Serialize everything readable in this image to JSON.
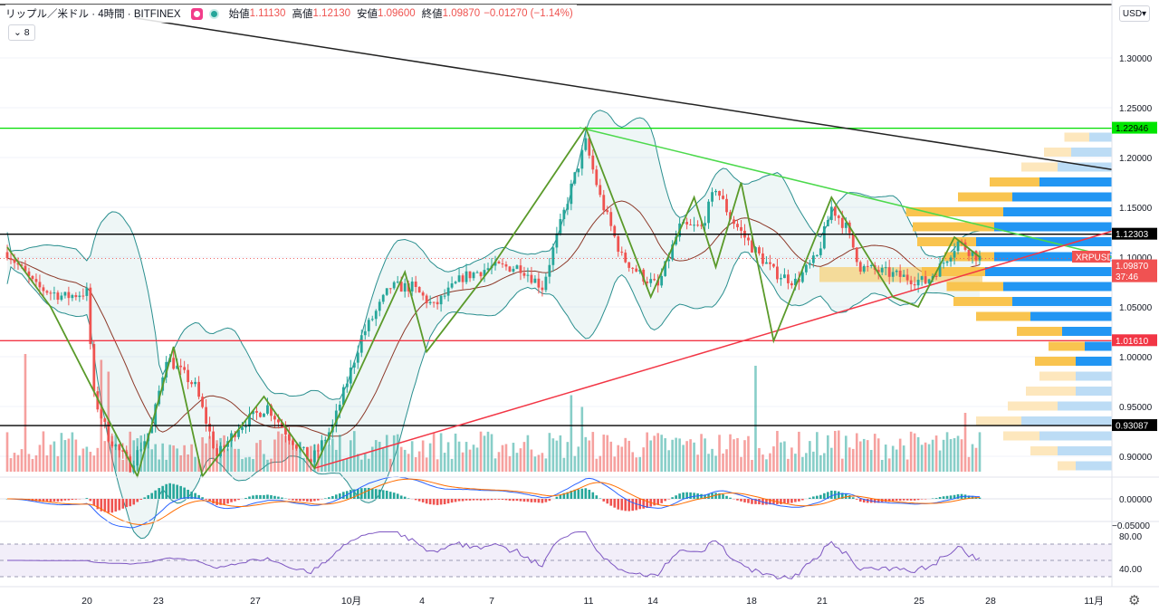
{
  "legend": {
    "symbol": "リップル／米ドル · 4時間 · BITFINEX",
    "open_label": "始値",
    "open": "1.11130",
    "high_label": "高値",
    "high": "1.12130",
    "low_label": "安値",
    "low": "1.09600",
    "close_label": "終値",
    "close": "1.09870",
    "change": "−0.01270 (−1.14%)",
    "indicator": "8"
  },
  "currency": "USD",
  "chart_data": {
    "type": "candlestick",
    "symbol": "XRPUSD",
    "timeframe": "4h",
    "x_ticks": [
      "20",
      "23",
      "27",
      "10月",
      "4",
      "7",
      "11",
      "14",
      "18",
      "21",
      "25",
      "28",
      "11月"
    ],
    "y_ticks": [
      "1.30000",
      "1.25000",
      "1.20000",
      "1.15000",
      "1.10000",
      "1.05000",
      "1.00000",
      "0.95000",
      "0.90000"
    ],
    "ylim": [
      0.875,
      1.35
    ],
    "price_tags": [
      {
        "label": "1.22946",
        "value": 1.22946,
        "color": "#00e600",
        "text_color": "#000000"
      },
      {
        "label": "1.12303",
        "value": 1.12303,
        "color": "#000000",
        "text_color": "#ffffff"
      },
      {
        "label": "XRPUSD",
        "value": 1.1,
        "color": "#f05252",
        "text_color": "#ffffff"
      },
      {
        "label": "1.09870",
        "value": 1.0913,
        "color": "#f05252",
        "text_color": "#ffffff"
      },
      {
        "label": "37:46",
        "value": 1.0803,
        "color": "#f05252",
        "text_color": "#ffffff"
      },
      {
        "label": "1.01610",
        "value": 1.0161,
        "color": "#f23645",
        "text_color": "#ffffff"
      },
      {
        "label": "0.93087",
        "value": 0.93087,
        "color": "#000000",
        "text_color": "#ffffff"
      }
    ],
    "horizontal_levels": [
      {
        "value": 1.22946,
        "color": "#00dd00"
      },
      {
        "value": 1.12303,
        "color": "#000000"
      },
      {
        "value": 1.0161,
        "color": "#f23645"
      },
      {
        "value": 0.93087,
        "color": "#000000"
      }
    ],
    "anchors": [
      {
        "t": 0,
        "p": 1.105
      },
      {
        "t": 8,
        "p": 1.07
      },
      {
        "t": 16,
        "p": 1.06
      },
      {
        "t": 22,
        "p": 1.065
      },
      {
        "t": 24,
        "p": 0.96
      },
      {
        "t": 28,
        "p": 0.92
      },
      {
        "t": 34,
        "p": 0.89
      },
      {
        "t": 40,
        "p": 0.93
      },
      {
        "t": 44,
        "p": 1.0
      },
      {
        "t": 52,
        "p": 0.97
      },
      {
        "t": 58,
        "p": 0.9
      },
      {
        "t": 64,
        "p": 0.93
      },
      {
        "t": 72,
        "p": 0.95
      },
      {
        "t": 78,
        "p": 0.92
      },
      {
        "t": 84,
        "p": 0.895
      },
      {
        "t": 90,
        "p": 0.93
      },
      {
        "t": 98,
        "p": 1.02
      },
      {
        "t": 106,
        "p": 1.07
      },
      {
        "t": 112,
        "p": 1.07
      },
      {
        "t": 118,
        "p": 1.05
      },
      {
        "t": 126,
        "p": 1.08
      },
      {
        "t": 134,
        "p": 1.09
      },
      {
        "t": 142,
        "p": 1.09
      },
      {
        "t": 148,
        "p": 1.07
      },
      {
        "t": 152,
        "p": 1.12
      },
      {
        "t": 156,
        "p": 1.17
      },
      {
        "t": 160,
        "p": 1.215
      },
      {
        "t": 164,
        "p": 1.16
      },
      {
        "t": 170,
        "p": 1.1
      },
      {
        "t": 176,
        "p": 1.08
      },
      {
        "t": 180,
        "p": 1.07
      },
      {
        "t": 186,
        "p": 1.13
      },
      {
        "t": 192,
        "p": 1.13
      },
      {
        "t": 196,
        "p": 1.17
      },
      {
        "t": 200,
        "p": 1.14
      },
      {
        "t": 206,
        "p": 1.11
      },
      {
        "t": 212,
        "p": 1.085
      },
      {
        "t": 218,
        "p": 1.075
      },
      {
        "t": 224,
        "p": 1.1
      },
      {
        "t": 228,
        "p": 1.15
      },
      {
        "t": 232,
        "p": 1.13
      },
      {
        "t": 236,
        "p": 1.09
      },
      {
        "t": 242,
        "p": 1.085
      },
      {
        "t": 248,
        "p": 1.08
      },
      {
        "t": 254,
        "p": 1.075
      },
      {
        "t": 258,
        "p": 1.09
      },
      {
        "t": 263,
        "p": 1.115
      },
      {
        "t": 269,
        "p": 1.099
      }
    ],
    "volume_spikes": [
      {
        "t": 5,
        "v": 1.0
      },
      {
        "t": 26,
        "v": 0.95
      },
      {
        "t": 28,
        "v": 0.85
      },
      {
        "t": 156,
        "v": 0.65
      },
      {
        "t": 159,
        "v": 0.55
      },
      {
        "t": 207,
        "v": 0.9
      },
      {
        "t": 230,
        "v": 0.35
      },
      {
        "t": 265,
        "v": 0.5
      }
    ],
    "macd_range": [
      -0.05,
      0.01
    ],
    "macd_ticks": [
      "0.00000",
      "−0.05000"
    ],
    "rsi_ticks": [
      "80.00",
      "40.00"
    ],
    "rsi_band": [
      30,
      70
    ],
    "colors": {
      "up": "#26a69a",
      "down": "#ef5350",
      "rsi": "#7e57c2",
      "bb": "#2a8f8f",
      "zigzag": "#5a9a2a"
    }
  }
}
